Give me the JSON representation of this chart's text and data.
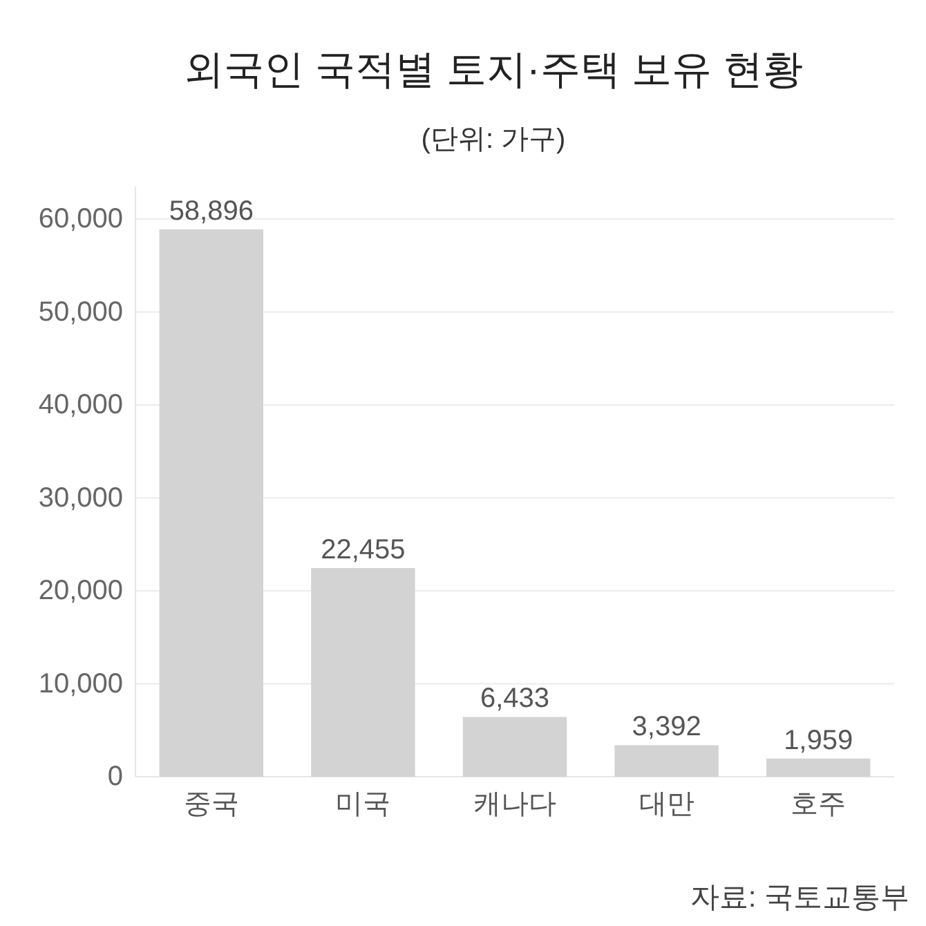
{
  "chart_data": {
    "type": "bar",
    "title": "외국인 국적별 토지·주택 보유 현황",
    "subtitle": "(단위: 가구)",
    "categories": [
      "중국",
      "미국",
      "캐나다",
      "대만",
      "호주"
    ],
    "values": [
      58896,
      22455,
      6433,
      3392,
      1959
    ],
    "value_labels": [
      "58,896",
      "22,455",
      "6,433",
      "3,392",
      "1,959"
    ],
    "color": "#d3d3d3",
    "ylim": [
      0,
      63500
    ],
    "yticks": [
      0,
      {
        "value": 10000,
        "label": "10,000"
      },
      {
        "value": 20000,
        "label": "20,000"
      },
      {
        "value": 30000,
        "label": "30,000"
      },
      {
        "value": 40000,
        "label": "40,000"
      },
      {
        "value": 50000,
        "label": "50,000"
      },
      {
        "value": 60000,
        "label": "60,000"
      }
    ],
    "grid": "y",
    "annotations": [
      "자료: 국토교통부"
    ]
  }
}
